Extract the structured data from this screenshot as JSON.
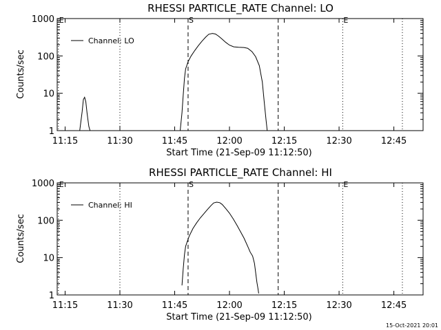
{
  "chart_data": [
    {
      "type": "line",
      "title": "RHESSI PARTICLE_RATE Channel: LO",
      "xlabel": "Start Time (21-Sep-09 11:12:50)",
      "ylabel": "Counts/sec",
      "yscale": "log",
      "ylim": [
        1,
        1000
      ],
      "xlim": [
        "11:12:50",
        "12:53:00"
      ],
      "xticks": [
        "11:15",
        "11:30",
        "11:45",
        "12:00",
        "12:15",
        "12:30",
        "12:45"
      ],
      "yticks": [
        "1",
        "10",
        "100",
        "1000"
      ],
      "legend": {
        "label": "Channel: LO",
        "position": "top-left"
      },
      "markers": [
        {
          "label": "E",
          "time": "11:13:10",
          "style": "dotted"
        },
        {
          "label": "",
          "time": "11:30:00",
          "style": "dotted"
        },
        {
          "label": "S",
          "time": "11:48:40",
          "style": "dashed"
        },
        {
          "label": "",
          "time": "12:13:20",
          "style": "dashed"
        },
        {
          "label": "E",
          "time": "12:31:00",
          "style": "dotted"
        },
        {
          "label": "",
          "time": "12:47:20",
          "style": "dotted"
        }
      ],
      "series": [
        {
          "name": "Channel: LO",
          "segments": [
            [
              [
                "11:19:00",
                1
              ],
              [
                "11:19:40",
                3.2
              ],
              [
                "11:20:00",
                6.8
              ],
              [
                "11:20:20",
                7.8
              ],
              [
                "11:20:40",
                6
              ],
              [
                "11:21:00",
                3
              ],
              [
                "11:21:30",
                1.3
              ],
              [
                "11:21:50",
                1
              ]
            ],
            [
              [
                "11:46:30",
                1
              ],
              [
                "11:47:00",
                3
              ],
              [
                "11:47:20",
                9
              ],
              [
                "11:47:40",
                25
              ],
              [
                "11:48:00",
                45
              ],
              [
                "11:48:40",
                70
              ],
              [
                "11:49:30",
                100
              ],
              [
                "11:50:30",
                140
              ],
              [
                "11:51:30",
                190
              ],
              [
                "11:52:30",
                250
              ],
              [
                "11:53:30",
                320
              ],
              [
                "11:54:20",
                380
              ],
              [
                "11:55:20",
                400
              ],
              [
                "11:56:10",
                385
              ],
              [
                "11:57:00",
                340
              ],
              [
                "11:57:50",
                290
              ],
              [
                "11:59:00",
                230
              ],
              [
                "12:00:00",
                195
              ],
              [
                "12:01:10",
                175
              ],
              [
                "12:02:30",
                170
              ],
              [
                "12:04:00",
                168
              ],
              [
                "12:05:00",
                160
              ],
              [
                "12:06:10",
                130
              ],
              [
                "12:07:10",
                95
              ],
              [
                "12:08:10",
                55
              ],
              [
                "12:09:00",
                20
              ],
              [
                "12:09:30",
                6
              ],
              [
                "12:10:00",
                2
              ],
              [
                "12:10:20",
                1
              ]
            ]
          ]
        }
      ]
    },
    {
      "type": "line",
      "title": "RHESSI PARTICLE_RATE Channel: HI",
      "xlabel": "Start Time (21-Sep-09 11:12:50)",
      "ylabel": "Counts/sec",
      "yscale": "log",
      "ylim": [
        1,
        1000
      ],
      "xlim": [
        "11:12:50",
        "12:53:00"
      ],
      "xticks": [
        "11:15",
        "11:30",
        "11:45",
        "12:00",
        "12:15",
        "12:30",
        "12:45"
      ],
      "yticks": [
        "1",
        "10",
        "100",
        "1000"
      ],
      "legend": {
        "label": "Channel: HI",
        "position": "top-left"
      },
      "markers": [
        {
          "label": "E",
          "time": "11:13:10",
          "style": "dotted"
        },
        {
          "label": "",
          "time": "11:30:00",
          "style": "dotted"
        },
        {
          "label": "S",
          "time": "11:48:40",
          "style": "dashed"
        },
        {
          "label": "",
          "time": "12:13:20",
          "style": "dashed"
        },
        {
          "label": "E",
          "time": "12:31:00",
          "style": "dotted"
        },
        {
          "label": "",
          "time": "12:47:20",
          "style": "dotted"
        }
      ],
      "series": [
        {
          "name": "Channel: HI",
          "segments": [
            [
              [
                "11:47:00",
                1.8
              ],
              [
                "11:47:20",
                5
              ],
              [
                "11:47:40",
                12
              ],
              [
                "11:48:00",
                20
              ],
              [
                "11:48:30",
                28
              ],
              [
                "11:49:00",
                38
              ],
              [
                "11:50:00",
                60
              ],
              [
                "11:51:00",
                85
              ],
              [
                "11:52:00",
                115
              ],
              [
                "11:53:00",
                150
              ],
              [
                "11:54:00",
                195
              ],
              [
                "11:55:00",
                250
              ],
              [
                "11:55:40",
                290
              ],
              [
                "11:56:30",
                305
              ],
              [
                "11:57:20",
                295
              ],
              [
                "11:58:00",
                265
              ],
              [
                "11:59:00",
                205
              ],
              [
                "12:00:00",
                155
              ],
              [
                "12:01:00",
                110
              ],
              [
                "12:02:00",
                75
              ],
              [
                "12:03:00",
                50
              ],
              [
                "12:04:00",
                33
              ],
              [
                "12:05:00",
                20
              ],
              [
                "12:05:40",
                14
              ],
              [
                "12:06:20",
                11
              ],
              [
                "12:06:50",
                7
              ],
              [
                "12:07:10",
                4
              ],
              [
                "12:07:30",
                2.2
              ],
              [
                "12:07:50",
                1.4
              ],
              [
                "12:08:00",
                1.1
              ]
            ]
          ]
        }
      ]
    }
  ],
  "footer": {
    "timestamp": "15-Oct-2021 20:01"
  }
}
